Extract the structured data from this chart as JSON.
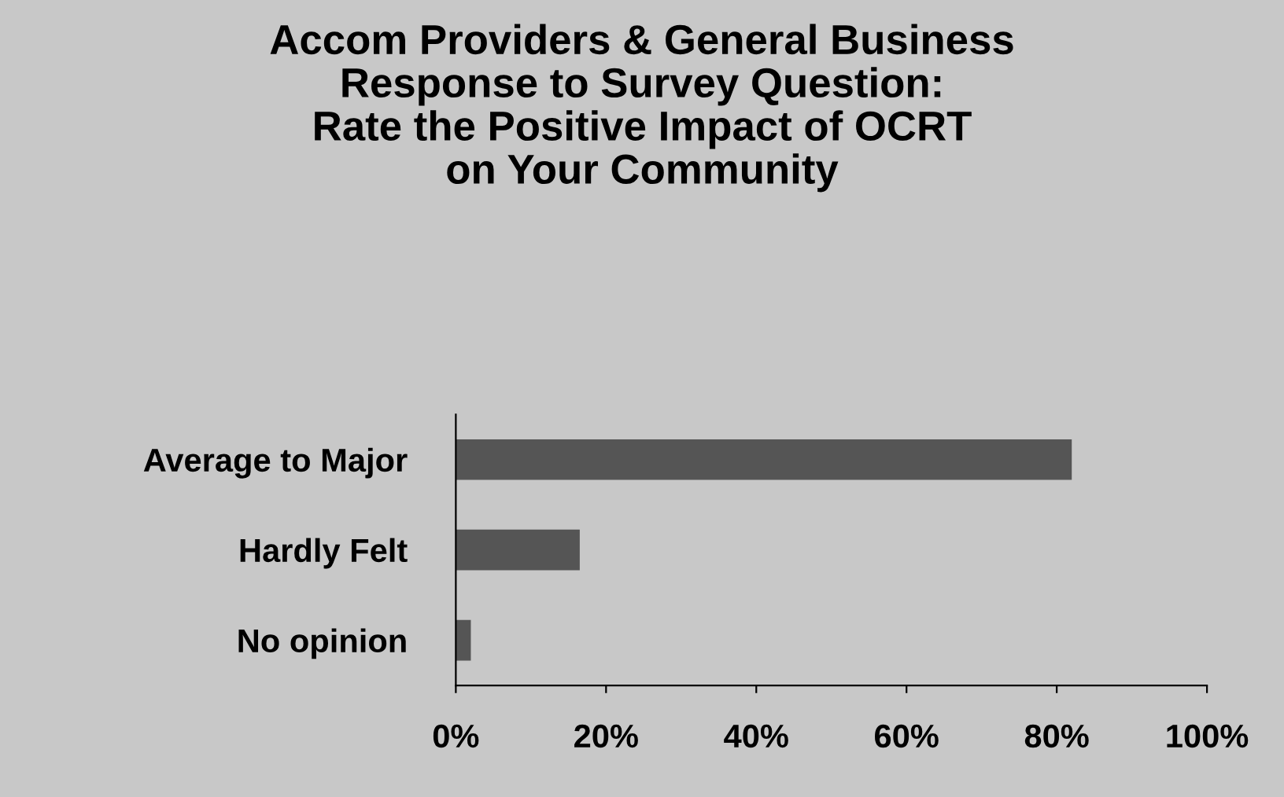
{
  "chart_data": {
    "type": "bar",
    "orientation": "horizontal",
    "title": "Accom Providers & General Business\nResponse to Survey Question:\nRate the Positive Impact of OCRT\non Your Community",
    "categories": [
      "Average to Major",
      "Hardly Felt",
      "No opinion"
    ],
    "values": [
      82,
      16.5,
      2
    ],
    "color": "#555555",
    "xlim": [
      0,
      100
    ],
    "xticks": [
      {
        "value": 0,
        "label": "0%"
      },
      {
        "value": 20,
        "label": "20%"
      },
      {
        "value": 40,
        "label": "40%"
      },
      {
        "value": 60,
        "label": "60%"
      },
      {
        "value": 80,
        "label": "80%"
      },
      {
        "value": 100,
        "label": "100%"
      }
    ],
    "grid": false
  }
}
